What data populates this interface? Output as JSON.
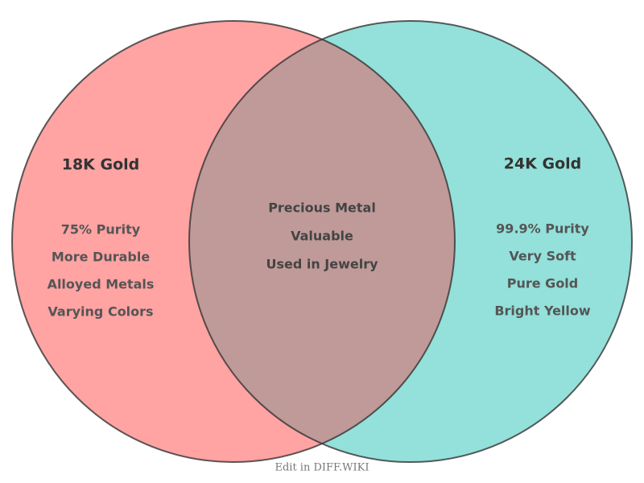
{
  "left": {
    "title": "18K Gold",
    "items": [
      "75% Purity",
      "More Durable",
      "Alloyed Metals",
      "Varying Colors"
    ]
  },
  "right": {
    "title": "24K Gold",
    "items": [
      "99.9% Purity",
      "Very Soft",
      "Pure Gold",
      "Bright Yellow"
    ]
  },
  "intersection": {
    "items": [
      "Precious Metal",
      "Valuable",
      "Used in Jewelry"
    ]
  },
  "footer": "Edit in DIFF.WIKI"
}
